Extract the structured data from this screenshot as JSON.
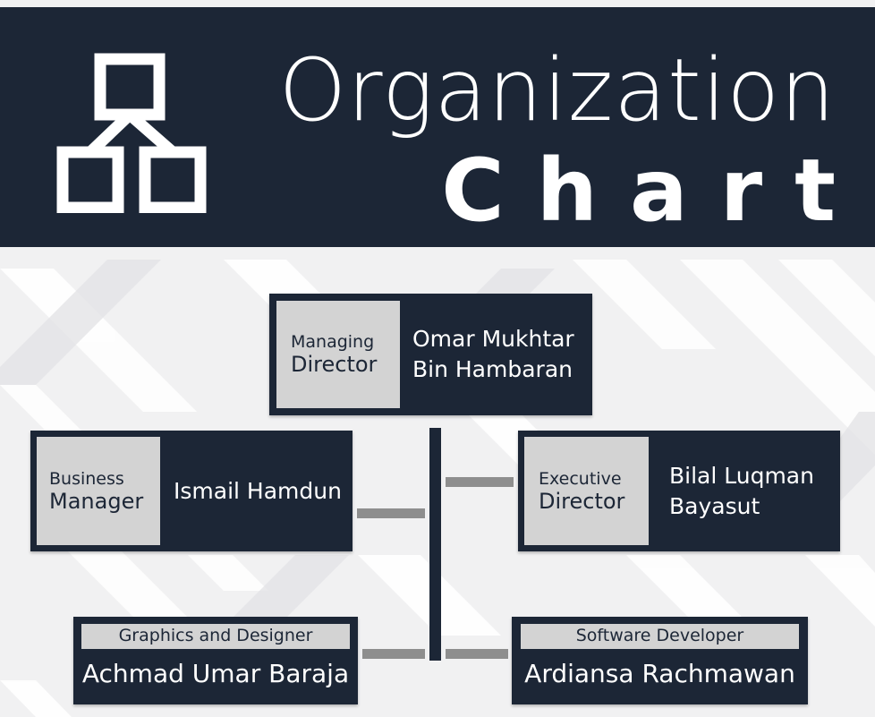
{
  "header": {
    "title_line1": "Organization",
    "title_line2": "Chart",
    "icon": "org-hierarchy-icon"
  },
  "cards": {
    "managing_director": {
      "role_line1": "Managing",
      "role_line2": "Director",
      "name_line1": "Omar Mukhtar",
      "name_line2": "Bin Hambaran"
    },
    "business_manager": {
      "role_line1": "Business",
      "role_line2": "Manager",
      "name_line1": "Ismail Hamdun"
    },
    "executive_director": {
      "role_line1": "Executive",
      "role_line2": "Director",
      "name_line1": "Bilal Luqman",
      "name_line2": "Bayasut"
    },
    "graphics_designer": {
      "role": "Graphics and Designer",
      "name": "Achmad Umar Baraja"
    },
    "software_developer": {
      "role": "Software Developer",
      "name": "Ardiansa Rachmawan"
    }
  },
  "colors": {
    "navy": "#1c2636",
    "role_gray": "#d3d3d3",
    "connector_gray": "#8e8e8e",
    "background": "#f1f1f2"
  }
}
